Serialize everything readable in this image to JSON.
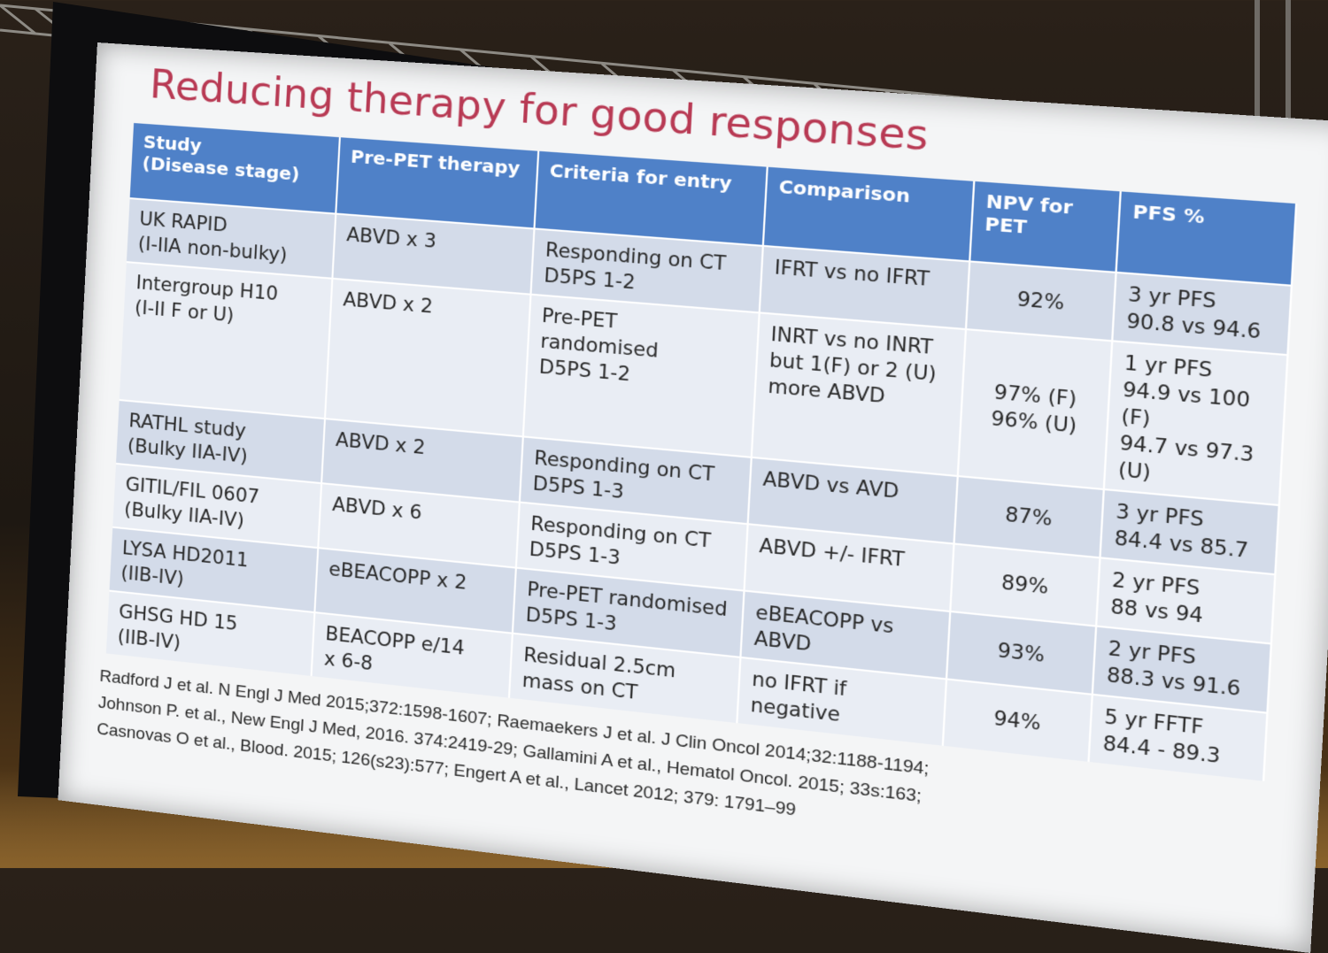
{
  "slide": {
    "title": "Reducing therapy for good responses",
    "table": {
      "headers": [
        "Study\n(Disease stage)",
        "Pre-PET therapy",
        "Criteria for entry",
        "Comparison",
        "NPV for PET",
        "PFS %"
      ],
      "rows": [
        [
          "UK RAPID\n(I-IIA non-bulky)",
          "ABVD x 3",
          "Responding on CT\nD5PS 1-2",
          "IFRT vs no IFRT",
          "92%",
          "3 yr PFS\n90.8 vs 94.6"
        ],
        [
          "Intergroup H10\n(I-II F or U)",
          "ABVD x 2",
          "Pre-PET\nrandomised\nD5PS 1-2",
          "INRT vs no INRT\nbut 1(F) or 2 (U)\nmore ABVD",
          "97% (F)\n96% (U)",
          "1 yr PFS\n94.9 vs 100 (F)\n94.7 vs 97.3 (U)"
        ],
        [
          "RATHL study\n(Bulky IIA-IV)",
          "ABVD x 2",
          "Responding on CT\nD5PS 1-3",
          "ABVD vs AVD",
          "87%",
          "3 yr PFS\n84.4 vs 85.7"
        ],
        [
          "GITIL/FIL 0607\n(Bulky IIA-IV)",
          "ABVD x 6",
          "Responding on CT\nD5PS 1-3",
          "ABVD +/- IFRT",
          "89%",
          "2 yr PFS\n88 vs 94"
        ],
        [
          "LYSA HD2011\n(IIB-IV)",
          "eBEACOPP x 2",
          "Pre-PET randomised\nD5PS 1-3",
          "eBEACOPP vs\nABVD",
          "93%",
          "2 yr PFS\n88.3 vs 91.6"
        ],
        [
          "GHSG HD 15\n(IIB-IV)",
          "BEACOPP e/14\nx 6-8",
          "Residual 2.5cm\nmass on CT",
          "no IFRT if\nnegative",
          "94%",
          "5 yr FFTF\n84.4 - 89.3"
        ]
      ]
    },
    "references": [
      "Radford J et al. N Engl J Med 2015;372:1598-1607; Raemaekers J et al. J Clin Oncol 2014;32:1188-1194;",
      "Johnson P. et al., New Engl J Med, 2016. 374:2419-29; Gallamini A et al., Hematol Oncol. 2015; 33s:163;",
      "Casnovas O et al., Blood. 2015; 126(s23):577;  Engert A et al., Lancet 2012; 379: 1791–99"
    ]
  },
  "colors": {
    "title": "#b83a54",
    "header_bg": "#4f81c8",
    "row_dark": "#d3dbe9",
    "row_light": "#e9edf4",
    "slide_bg": "#f4f5f6"
  }
}
